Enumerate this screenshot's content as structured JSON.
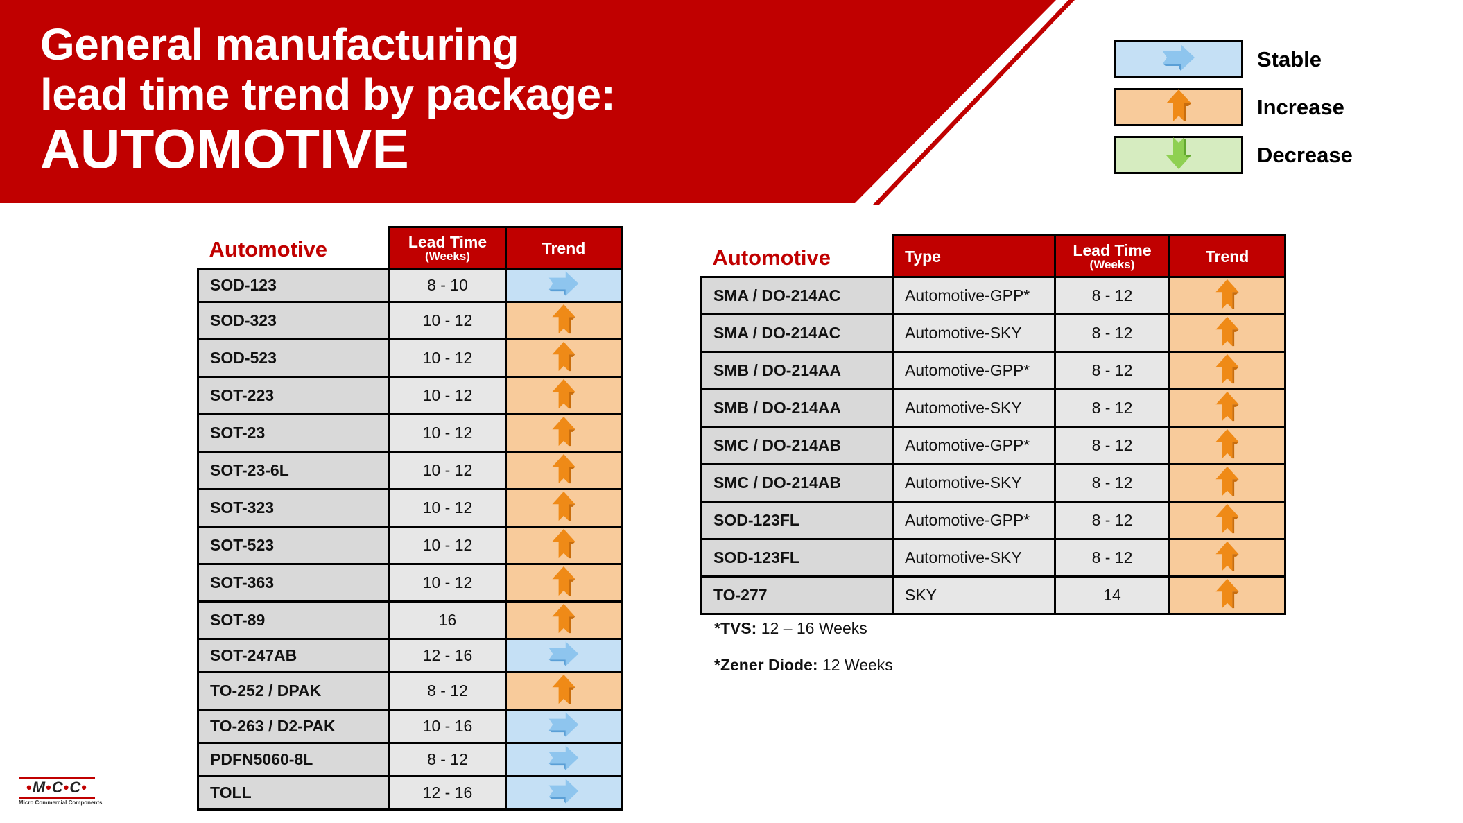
{
  "header": {
    "title_line1": "General manufacturing",
    "title_line2": "lead time trend by package:",
    "title_line3": "AUTOMOTIVE"
  },
  "colors": {
    "brand_red": "#c00000",
    "stable_bg": "#c5e0f5",
    "increase_bg": "#f8cb9b",
    "decrease_bg": "#d6ecc0",
    "name_cell_bg": "#d9d9d9",
    "value_cell_bg": "#e7e7e7"
  },
  "legend": [
    {
      "label": "Stable",
      "icon": "arrow-right-icon"
    },
    {
      "label": "Increase",
      "icon": "arrow-up-icon"
    },
    {
      "label": "Decrease",
      "icon": "arrow-down-icon"
    }
  ],
  "left_table": {
    "title": "Automotive",
    "headers": {
      "lead_time": "Lead Time",
      "lead_time_unit": "(Weeks)",
      "trend": "Trend"
    },
    "rows": [
      {
        "package": "SOD-123",
        "lead_time": "8 - 10",
        "trend": "stable"
      },
      {
        "package": "SOD-323",
        "lead_time": "10 - 12",
        "trend": "increase"
      },
      {
        "package": "SOD-523",
        "lead_time": "10 - 12",
        "trend": "increase"
      },
      {
        "package": "SOT-223",
        "lead_time": "10 - 12",
        "trend": "increase"
      },
      {
        "package": "SOT-23",
        "lead_time": "10 - 12",
        "trend": "increase"
      },
      {
        "package": "SOT-23-6L",
        "lead_time": "10 - 12",
        "trend": "increase"
      },
      {
        "package": "SOT-323",
        "lead_time": "10 - 12",
        "trend": "increase"
      },
      {
        "package": "SOT-523",
        "lead_time": "10 - 12",
        "trend": "increase"
      },
      {
        "package": "SOT-363",
        "lead_time": "10 - 12",
        "trend": "increase"
      },
      {
        "package": "SOT-89",
        "lead_time": "16",
        "trend": "increase"
      },
      {
        "package": "SOT-247AB",
        "lead_time": "12 - 16",
        "trend": "stable"
      },
      {
        "package": "TO-252 / DPAK",
        "lead_time": "8 - 12",
        "trend": "increase"
      },
      {
        "package": "TO-263 / D2-PAK",
        "lead_time": "10 - 16",
        "trend": "stable"
      },
      {
        "package": "PDFN5060-8L",
        "lead_time": "8 - 12",
        "trend": "stable"
      },
      {
        "package": "TOLL",
        "lead_time": "12 - 16",
        "trend": "stable"
      }
    ]
  },
  "right_table": {
    "title": "Automotive",
    "headers": {
      "type": "Type",
      "lead_time": "Lead Time",
      "lead_time_unit": "(Weeks)",
      "trend": "Trend"
    },
    "rows": [
      {
        "package": "SMA / DO-214AC",
        "type": "Automotive-GPP*",
        "lead_time": "8 - 12",
        "trend": "increase"
      },
      {
        "package": "SMA / DO-214AC",
        "type": "Automotive-SKY",
        "lead_time": "8 - 12",
        "trend": "increase"
      },
      {
        "package": "SMB / DO-214AA",
        "type": "Automotive-GPP*",
        "lead_time": "8 - 12",
        "trend": "increase"
      },
      {
        "package": "SMB / DO-214AA",
        "type": "Automotive-SKY",
        "lead_time": "8 - 12",
        "trend": "increase"
      },
      {
        "package": "SMC / DO-214AB",
        "type": "Automotive-GPP*",
        "lead_time": "8 - 12",
        "trend": "increase"
      },
      {
        "package": "SMC / DO-214AB",
        "type": "Automotive-SKY",
        "lead_time": "8 - 12",
        "trend": "increase"
      },
      {
        "package": "SOD-123FL",
        "type": "Automotive-GPP*",
        "lead_time": "8 - 12",
        "trend": "increase"
      },
      {
        "package": "SOD-123FL",
        "type": "Automotive-SKY",
        "lead_time": "8 - 12",
        "trend": "increase"
      },
      {
        "package": "TO-277",
        "type": "SKY",
        "lead_time": "14",
        "trend": "increase"
      }
    ]
  },
  "notes": [
    {
      "label": "*TVS:",
      "value": " 12 – 16 Weeks"
    },
    {
      "label": "*Zener Diode:",
      "value": " 12 Weeks"
    }
  ],
  "logo": {
    "mark_letters": [
      "M",
      "C",
      "C"
    ],
    "tagline": "Micro Commercial Components"
  }
}
